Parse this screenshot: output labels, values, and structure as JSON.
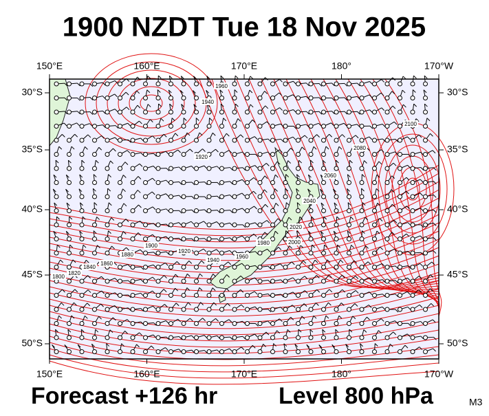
{
  "title": "1900 NZDT Tue 18 Nov 2025",
  "longitude_labels": [
    "150°E",
    "160°E",
    "170°E",
    "180°",
    "170°W"
  ],
  "latitude_labels": [
    "30°S",
    "35°S",
    "40°S",
    "45°S",
    "50°S"
  ],
  "contour_labels": [
    "1960",
    "1940",
    "1920",
    "2100",
    "2080",
    "2060",
    "2040",
    "2020",
    "2000",
    "1980",
    "1960",
    "1940",
    "1920",
    "1900",
    "1880",
    "1860",
    "1840",
    "1820",
    "1800"
  ],
  "footer": {
    "forecast": "Forecast +126 hr",
    "level": "Level 800 hPa",
    "model": "M3"
  }
}
